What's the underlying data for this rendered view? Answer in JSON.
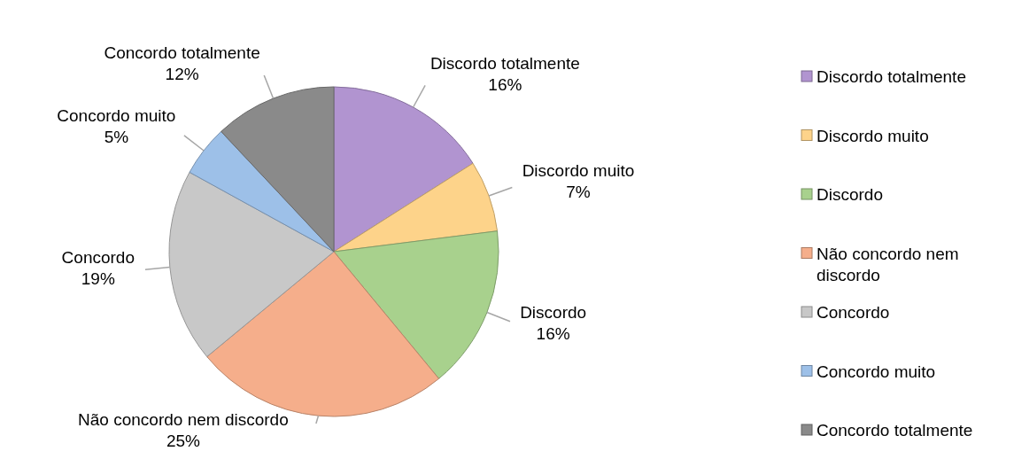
{
  "chart_data": {
    "type": "pie",
    "categories": [
      "Discordo totalmente",
      "Discordo muito",
      "Discordo",
      "Não concordo nem discordo",
      "Concordo",
      "Concordo muito",
      "Concordo totalmente"
    ],
    "values": [
      16,
      7,
      16,
      25,
      19,
      5,
      12
    ],
    "value_labels": [
      "16%",
      "7%",
      "16%",
      "25%",
      "19%",
      "5%",
      "12%"
    ],
    "colors": [
      "#b194d0",
      "#fdd38a",
      "#a8d18d",
      "#f5ae8b",
      "#c8c8c8",
      "#9dc0e8",
      "#8a8a8a"
    ],
    "legend": "right"
  }
}
